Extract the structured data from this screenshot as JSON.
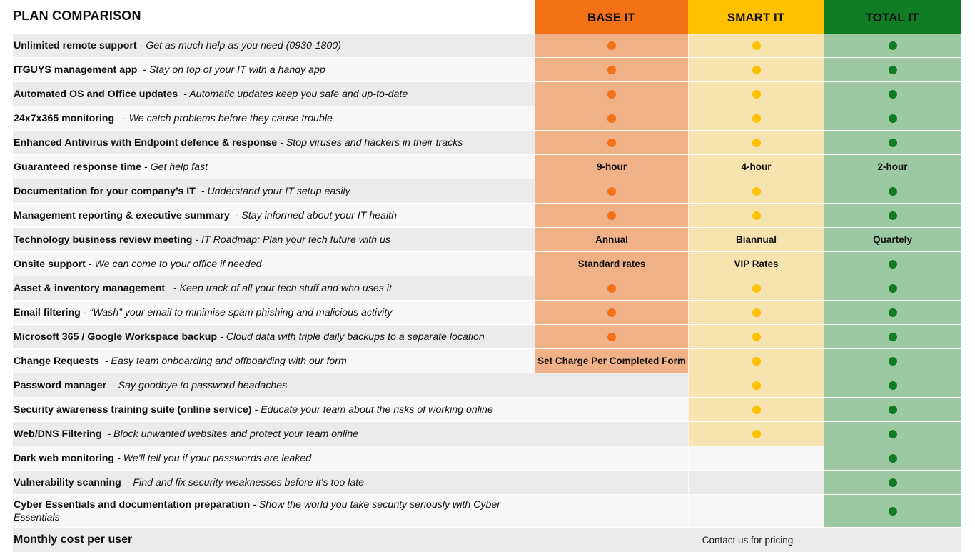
{
  "title": "PLAN COMPARISON",
  "plans": [
    {
      "key": "base",
      "label": "BASE IT",
      "color": "#f47217"
    },
    {
      "key": "smart",
      "label": "SMART IT",
      "color": "#ffc000"
    },
    {
      "key": "total",
      "label": "TOTAL IT",
      "color": "#107c23"
    }
  ],
  "features": [
    {
      "name": "Unlimited remote support",
      "desc": " - Get as much help as you need (0930-1800)",
      "base": "dot",
      "smart": "dot",
      "total": "dot"
    },
    {
      "name": "ITGUYS management app",
      "desc": "  - Stay on top of your IT with a handy app",
      "base": "dot",
      "smart": "dot",
      "total": "dot"
    },
    {
      "name": "Automated OS and Office updates",
      "desc": "  - Automatic updates keep you safe and up-to-date",
      "base": "dot",
      "smart": "dot",
      "total": "dot"
    },
    {
      "name": "24x7x365 monitoring",
      "desc": "   - We catch problems before they cause trouble",
      "base": "dot",
      "smart": "dot",
      "total": "dot"
    },
    {
      "name": "Enhanced Antivirus with Endpoint defence & response",
      "desc": " - Stop viruses and hackers in their tracks",
      "base": "dot",
      "smart": "dot",
      "total": "dot"
    },
    {
      "name": "Guaranteed response time",
      "desc": " - Get help fast",
      "base": "9-hour",
      "smart": "4-hour",
      "total": "2-hour"
    },
    {
      "name": "Documentation for your company’s IT",
      "desc": "  - Understand your IT setup easily",
      "base": "dot",
      "smart": "dot",
      "total": "dot"
    },
    {
      "name": "Management reporting & executive summary",
      "desc": "  - Stay informed about your IT health",
      "base": "dot",
      "smart": "dot",
      "total": "dot"
    },
    {
      "name": "Technology business review meeting",
      "desc": " - IT Roadmap: Plan your tech future with us",
      "base": "Annual",
      "smart": "Biannual",
      "total": "Quartely"
    },
    {
      "name": "Onsite support",
      "desc": " - We can come to your office if needed",
      "base": "Standard rates",
      "smart": "VIP Rates",
      "total": "dot"
    },
    {
      "name": "Asset & inventory management",
      "desc": "   - Keep track of all your tech stuff and who uses it",
      "base": "dot",
      "smart": "dot",
      "total": "dot"
    },
    {
      "name": "Email filtering",
      "desc": " - “Wash” your email to minimise spam phishing and malicious activity",
      "base": "dot",
      "smart": "dot",
      "total": "dot"
    },
    {
      "name": "Microsoft 365 / Google Workspace backup",
      "desc": " - Cloud data with triple daily backups to a separate location",
      "base": "dot",
      "smart": "dot",
      "total": "dot"
    },
    {
      "name": "Change Requests",
      "desc": "  - Easy team onboarding and offboarding with our form",
      "base": "Set Charge Per Completed Form",
      "smart": "dot",
      "total": "dot"
    },
    {
      "name": "Password manager",
      "desc": "  - Say goodbye to password headaches",
      "base": "",
      "smart": "dot",
      "total": "dot"
    },
    {
      "name": "Security awareness training suite (online service)",
      "desc": " - Educate your team about the risks of working online",
      "base": "",
      "smart": "dot",
      "total": "dot"
    },
    {
      "name": "Web/DNS Filtering",
      "desc": "  - Block unwanted websites and protect your team online",
      "base": "",
      "smart": "dot",
      "total": "dot"
    },
    {
      "name": "Dark web monitoring",
      "desc": " - We'll tell you if your passwords are leaked",
      "base": "",
      "smart": "",
      "total": "dot"
    },
    {
      "name": "Vulnerability scanning",
      "desc": "  - Find and fix security weaknesses before it's too late",
      "base": "",
      "smart": "",
      "total": "dot"
    },
    {
      "name": "Cyber Essentials and documentation preparation",
      "desc": " - Show the world you take security seriously with Cyber Essentials",
      "base": "",
      "smart": "",
      "total": "dot"
    }
  ],
  "cost": {
    "label": "Monthly cost per user",
    "value": "Contact us for pricing"
  }
}
